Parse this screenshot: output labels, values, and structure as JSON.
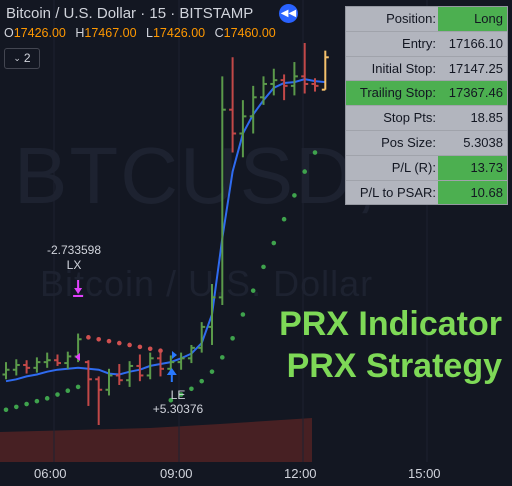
{
  "header": {
    "title": "Bitcoin / U.S. Dollar · 15 · BITSTAMP",
    "nav_icon": "double-chevron-left-icon"
  },
  "ohlc": {
    "open_label": "O",
    "open": "17426.00",
    "high_label": "H",
    "high": "17467.00",
    "low_label": "L",
    "low": "17426.00",
    "close_label": "C",
    "close": "17460.00"
  },
  "indicators_toggle": {
    "icon": "chevron-down-icon",
    "count": "2"
  },
  "watermark": {
    "symbol": "BTCUSD, 15",
    "name": "Bitcoin / U.S. Dollar"
  },
  "position_table": [
    {
      "label": "Position:",
      "value": "Long",
      "label_highlight": false,
      "value_highlight": true
    },
    {
      "label": "Entry:",
      "value": "17166.10",
      "label_highlight": false,
      "value_highlight": false
    },
    {
      "label": "Initial Stop:",
      "value": "17147.25",
      "label_highlight": false,
      "value_highlight": false
    },
    {
      "label": "Trailing Stop:",
      "value": "17367.46",
      "label_highlight": true,
      "value_highlight": true
    },
    {
      "label": "Stop Pts:",
      "value": "18.85",
      "label_highlight": false,
      "value_highlight": false
    },
    {
      "label": "Pos Size:",
      "value": "5.3038",
      "label_highlight": false,
      "value_highlight": false
    },
    {
      "label": "P/L (R):",
      "value": "13.73",
      "label_highlight": false,
      "value_highlight": true
    },
    {
      "label": "P/L to PSAR:",
      "value": "10.68",
      "label_highlight": false,
      "value_highlight": true
    }
  ],
  "promo": {
    "line1": "PRX Indicator",
    "line2": "PRX Strategy"
  },
  "signals": {
    "exit": {
      "value": "-2.733598",
      "tag": "LX"
    },
    "entry": {
      "tag": "LE",
      "value": "+5.30376"
    }
  },
  "x_axis": {
    "ticks": [
      "06:00",
      "09:00",
      "12:00",
      "15:00"
    ]
  },
  "colors": {
    "background": "#131722",
    "bull": "#5b9a4a",
    "bear": "#c24848",
    "psar_bull": "#3fa34d",
    "psar_bear": "#d05050",
    "ma_line": "#2f6bf0",
    "current_bar": "#f5c16c",
    "exit_marker": "#e040fb",
    "entry_marker": "#2979ff",
    "table_bg": "#b2b5be",
    "table_highlight": "#4caf50",
    "promo_text": "#7ed957",
    "volume_fill": "#5a2424"
  },
  "chart_data": {
    "type": "ohlc",
    "interval_minutes": 15,
    "bars": [
      {
        "time": "04:45",
        "open": 17127,
        "high": 17140,
        "low": 17122,
        "close": 17132
      },
      {
        "time": "05:00",
        "open": 17132,
        "high": 17143,
        "low": 17126,
        "close": 17137
      },
      {
        "time": "05:15",
        "open": 17137,
        "high": 17142,
        "low": 17128,
        "close": 17134
      },
      {
        "time": "05:30",
        "open": 17134,
        "high": 17145,
        "low": 17129,
        "close": 17140
      },
      {
        "time": "05:45",
        "open": 17140,
        "high": 17150,
        "low": 17134,
        "close": 17142
      },
      {
        "time": "06:00",
        "open": 17142,
        "high": 17148,
        "low": 17136,
        "close": 17139
      },
      {
        "time": "06:15",
        "open": 17139,
        "high": 17151,
        "low": 17133,
        "close": 17146
      },
      {
        "time": "06:30",
        "open": 17146,
        "high": 17170,
        "low": 17140,
        "close": 17164
      },
      {
        "time": "06:45",
        "open": 17140,
        "high": 17142,
        "low": 17094,
        "close": 17122
      },
      {
        "time": "07:00",
        "open": 17122,
        "high": 17125,
        "low": 17074,
        "close": 17111
      },
      {
        "time": "07:15",
        "open": 17111,
        "high": 17133,
        "low": 17105,
        "close": 17126
      },
      {
        "time": "07:30",
        "open": 17126,
        "high": 17138,
        "low": 17116,
        "close": 17121
      },
      {
        "time": "07:45",
        "open": 17121,
        "high": 17141,
        "low": 17114,
        "close": 17136
      },
      {
        "time": "08:00",
        "open": 17136,
        "high": 17148,
        "low": 17120,
        "close": 17126
      },
      {
        "time": "08:15",
        "open": 17126,
        "high": 17150,
        "low": 17122,
        "close": 17144
      },
      {
        "time": "08:30",
        "open": 17144,
        "high": 17150,
        "low": 17125,
        "close": 17133
      },
      {
        "time": "08:45",
        "open": 17133,
        "high": 17147,
        "low": 17128,
        "close": 17140
      },
      {
        "time": "09:00",
        "open": 17140,
        "high": 17150,
        "low": 17132,
        "close": 17144
      },
      {
        "time": "09:15",
        "open": 17144,
        "high": 17158,
        "low": 17139,
        "close": 17155
      },
      {
        "time": "09:30",
        "open": 17155,
        "high": 17182,
        "low": 17150,
        "close": 17177
      },
      {
        "time": "09:45",
        "open": 17177,
        "high": 17222,
        "low": 17158,
        "close": 17208
      },
      {
        "time": "10:00",
        "open": 17208,
        "high": 17440,
        "low": 17200,
        "close": 17405
      },
      {
        "time": "10:15",
        "open": 17405,
        "high": 17460,
        "low": 17360,
        "close": 17380
      },
      {
        "time": "10:30",
        "open": 17380,
        "high": 17415,
        "low": 17355,
        "close": 17398
      },
      {
        "time": "10:45",
        "open": 17398,
        "high": 17430,
        "low": 17380,
        "close": 17418
      },
      {
        "time": "11:00",
        "open": 17418,
        "high": 17440,
        "low": 17410,
        "close": 17432
      },
      {
        "time": "11:15",
        "open": 17432,
        "high": 17448,
        "low": 17420,
        "close": 17436
      },
      {
        "time": "11:30",
        "open": 17436,
        "high": 17442,
        "low": 17415,
        "close": 17430
      },
      {
        "time": "11:45",
        "open": 17430,
        "high": 17455,
        "low": 17420,
        "close": 17440
      },
      {
        "time": "12:00",
        "open": 17440,
        "high": 17475,
        "low": 17422,
        "close": 17432
      },
      {
        "time": "12:15",
        "open": 17432,
        "high": 17438,
        "low": 17424,
        "close": 17430
      },
      {
        "time": "12:30",
        "open": 17426,
        "high": 17467,
        "low": 17426,
        "close": 17460
      }
    ],
    "moving_average": [
      17120,
      17122,
      17125,
      17127,
      17130,
      17132,
      17133,
      17134,
      17133,
      17132,
      17128,
      17127,
      17130,
      17132,
      17136,
      17138,
      17140,
      17144,
      17149,
      17160,
      17190,
      17270,
      17340,
      17380,
      17400,
      17415,
      17428,
      17433,
      17434,
      17437,
      17435,
      17434
    ],
    "psar": [
      {
        "time": "04:45",
        "value": 17090,
        "side": "bull"
      },
      {
        "time": "05:00",
        "value": 17093,
        "side": "bull"
      },
      {
        "time": "05:15",
        "value": 17096,
        "side": "bull"
      },
      {
        "time": "05:30",
        "value": 17099,
        "side": "bull"
      },
      {
        "time": "05:45",
        "value": 17102,
        "side": "bull"
      },
      {
        "time": "06:00",
        "value": 17106,
        "side": "bull"
      },
      {
        "time": "06:15",
        "value": 17110,
        "side": "bull"
      },
      {
        "time": "06:30",
        "value": 17114,
        "side": "bull"
      },
      {
        "time": "06:45",
        "value": 17166,
        "side": "bear"
      },
      {
        "time": "07:00",
        "value": 17164,
        "side": "bear"
      },
      {
        "time": "07:15",
        "value": 17162,
        "side": "bear"
      },
      {
        "time": "07:30",
        "value": 17160,
        "side": "bear"
      },
      {
        "time": "07:45",
        "value": 17158,
        "side": "bear"
      },
      {
        "time": "08:00",
        "value": 17156,
        "side": "bear"
      },
      {
        "time": "08:15",
        "value": 17154,
        "side": "bear"
      },
      {
        "time": "08:30",
        "value": 17152,
        "side": "bear"
      },
      {
        "time": "08:45",
        "value": 17100,
        "side": "bull"
      },
      {
        "time": "09:00",
        "value": 17106,
        "side": "bull"
      },
      {
        "time": "09:15",
        "value": 17112,
        "side": "bull"
      },
      {
        "time": "09:30",
        "value": 17120,
        "side": "bull"
      },
      {
        "time": "09:45",
        "value": 17130,
        "side": "bull"
      },
      {
        "time": "10:00",
        "value": 17145,
        "side": "bull"
      },
      {
        "time": "10:15",
        "value": 17165,
        "side": "bull"
      },
      {
        "time": "10:30",
        "value": 17190,
        "side": "bull"
      },
      {
        "time": "10:45",
        "value": 17215,
        "side": "bull"
      },
      {
        "time": "11:00",
        "value": 17240,
        "side": "bull"
      },
      {
        "time": "11:15",
        "value": 17265,
        "side": "bull"
      },
      {
        "time": "11:30",
        "value": 17290,
        "side": "bull"
      },
      {
        "time": "11:45",
        "value": 17315,
        "side": "bull"
      },
      {
        "time": "12:00",
        "value": 17340,
        "side": "bull"
      },
      {
        "time": "12:15",
        "value": 17360,
        "side": "bull"
      }
    ]
  }
}
